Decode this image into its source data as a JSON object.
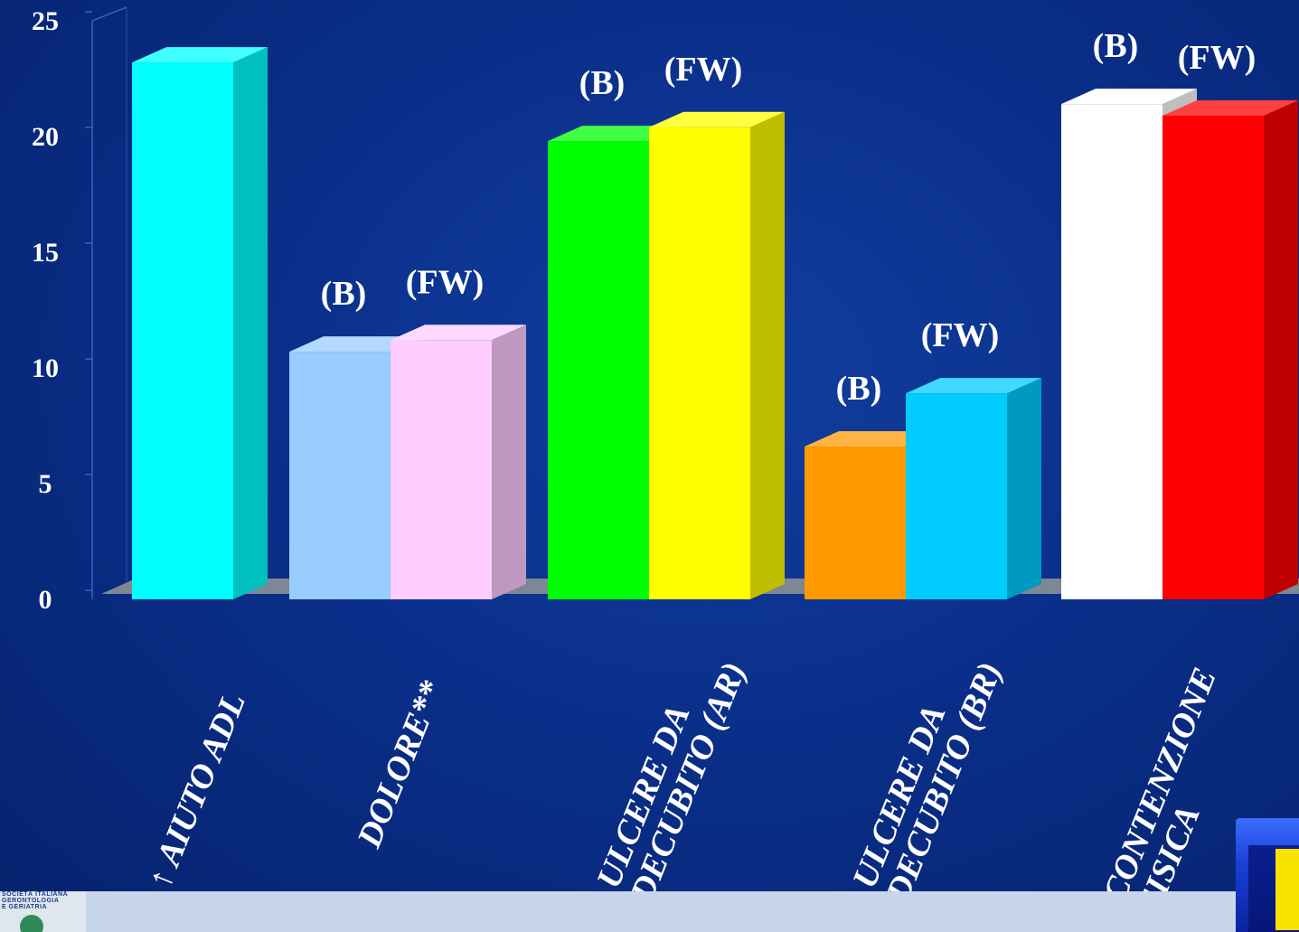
{
  "chart_data": {
    "type": "bar",
    "style": "3d-clustered-columns",
    "title": "",
    "xlabel": "",
    "ylabel": "",
    "ylim": [
      0,
      25
    ],
    "yticks": [
      "0",
      "5",
      "10",
      "15",
      "20",
      "25"
    ],
    "categories": [
      {
        "label_lines": [
          "AIUTO ADL"
        ],
        "prefix": "↑"
      },
      {
        "label_lines": [
          "DOLORE**"
        ]
      },
      {
        "label_lines": [
          "ULCERE DA",
          "DECUBITO (AR)"
        ]
      },
      {
        "label_lines": [
          "ULCERE DA",
          "DECUBITO (BR)"
        ]
      },
      {
        "label_lines": [
          "CONTENZIONE",
          "FISICA"
        ]
      }
    ],
    "bars": [
      {
        "category": 0,
        "label": "",
        "value": 23.2,
        "color": "#00ffff"
      },
      {
        "category": 1,
        "label": "(B)",
        "value": 10.7,
        "color": "#99ccff"
      },
      {
        "category": 1,
        "label": "(FW)",
        "value": 11.2,
        "color": "#ffccff"
      },
      {
        "category": 2,
        "label": "(B)",
        "value": 19.8,
        "color": "#00ff00"
      },
      {
        "category": 2,
        "label": "(FW)",
        "value": 20.4,
        "color": "#ffff00"
      },
      {
        "category": 3,
        "label": "(B)",
        "value": 6.6,
        "color": "#ff9900"
      },
      {
        "category": 3,
        "label": "(FW)",
        "value": 8.9,
        "color": "#00ccff"
      },
      {
        "category": 4,
        "label": "(B)",
        "value": 21.4,
        "color": "#ffffff"
      },
      {
        "category": 4,
        "label": "(FW)",
        "value": 20.9,
        "color": "#ff0000"
      }
    ],
    "grid": false,
    "legend": "none"
  },
  "footer": {
    "logo_lines": [
      "SOCIETÀ ITALIANA",
      "GERONTOLOGIA",
      "E GERIATRIA"
    ],
    "corner_badge_color": "#f7e200"
  }
}
